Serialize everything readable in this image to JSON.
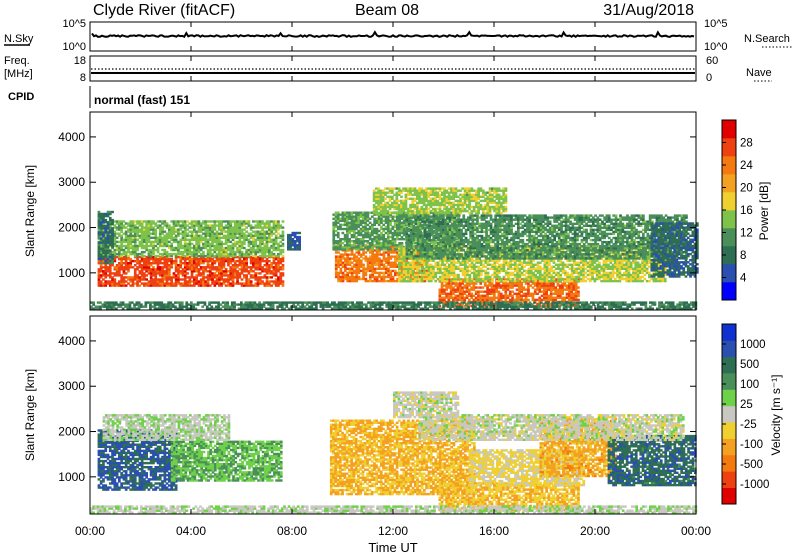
{
  "header": {
    "station": "Clyde River (fitACF)",
    "beam": "Beam 08",
    "date": "31/Aug/2018"
  },
  "panel_nsky": {
    "left_label": "N.Sky",
    "left_ticks": [
      "10^5",
      "10^0"
    ],
    "right_label": "N.Search",
    "right_ticks": [
      "10^5",
      "10^0"
    ]
  },
  "panel_freq": {
    "left_label_1": "Freq.",
    "left_label_2": "[MHz]",
    "left_ticks": [
      "18",
      "8"
    ],
    "right_label": "Nave",
    "right_ticks": [
      "60",
      "0"
    ]
  },
  "cpid": {
    "label": "CPID",
    "mode": "normal (fast) 151"
  },
  "time_axis": {
    "label": "Time UT",
    "ticks": [
      "00:00",
      "04:00",
      "08:00",
      "12:00",
      "16:00",
      "20:00",
      "00:00"
    ]
  },
  "colors": {
    "power": [
      "#0000ff",
      "#2a4fb0",
      "#2e6e52",
      "#4a8f5a",
      "#7ec24a",
      "#f0d030",
      "#f4a020",
      "#f47a10",
      "#ee4010",
      "#e00000"
    ],
    "velocity": [
      "#e00000",
      "#ee4010",
      "#f47a10",
      "#f4a020",
      "#f0d030",
      "#c8c8c0",
      "#6fd14a",
      "#4a8f5a",
      "#2e6e52",
      "#2a4fb0",
      "#1030d0"
    ]
  },
  "chart_data": [
    {
      "type": "heatmap",
      "title": "",
      "xlabel": "",
      "ylabel": "Slant Range [km]",
      "xlim": [
        0,
        24
      ],
      "ylim": [
        180,
        4550
      ],
      "yticks": [
        "1000",
        "2000",
        "3000",
        "4000"
      ],
      "colorbar": {
        "label": "Power [dB]",
        "ticks": [
          "4",
          "8",
          "12",
          "16",
          "20",
          "24",
          "28"
        ],
        "range": [
          0,
          32
        ]
      },
      "regions": [
        {
          "t0": 0.3,
          "t1": 7.6,
          "r0": 700,
          "r1": 1350,
          "value": 27
        },
        {
          "t0": 0.3,
          "t1": 7.6,
          "r0": 1350,
          "r1": 2150,
          "value": 14
        },
        {
          "t0": 0.3,
          "t1": 0.9,
          "r0": 1200,
          "r1": 2350,
          "value": 8
        },
        {
          "t0": 7.8,
          "t1": 8.3,
          "r0": 1500,
          "r1": 1900,
          "value": 6
        },
        {
          "t0": 9.7,
          "t1": 13.3,
          "r0": 800,
          "r1": 1600,
          "value": 24
        },
        {
          "t0": 9.6,
          "t1": 14.6,
          "r0": 1500,
          "r1": 2350,
          "value": 12
        },
        {
          "t0": 11.2,
          "t1": 16.5,
          "r0": 2300,
          "r1": 2850,
          "value": 15
        },
        {
          "t0": 13.8,
          "t1": 19.3,
          "r0": 250,
          "r1": 850,
          "value": 25
        },
        {
          "t0": 12.2,
          "t1": 22.8,
          "r0": 800,
          "r1": 1600,
          "value": 16
        },
        {
          "t0": 12.5,
          "t1": 23.6,
          "r0": 1300,
          "r1": 2250,
          "value": 11
        },
        {
          "t0": 22.2,
          "t1": 24.0,
          "r0": 900,
          "r1": 2100,
          "value": 7
        },
        {
          "t0": 0.0,
          "t1": 24.0,
          "r0": 190,
          "r1": 330,
          "value": 9
        }
      ]
    },
    {
      "type": "heatmap",
      "title": "",
      "xlabel": "Time UT",
      "ylabel": "Slant Range [km]",
      "xlim": [
        0,
        24
      ],
      "ylim": [
        180,
        4550
      ],
      "yticks": [
        "1000",
        "2000",
        "3000",
        "4000"
      ],
      "colorbar": {
        "label": "Velocity [m s⁻¹]",
        "ticks": [
          "1000",
          "500",
          "100",
          "25",
          "-25",
          "-100",
          "-500",
          "-1000"
        ],
        "range": [
          -1200,
          1200
        ]
      },
      "regions": [
        {
          "t0": 0.3,
          "t1": 3.4,
          "r0": 700,
          "r1": 2050,
          "value": 800
        },
        {
          "t0": 3.2,
          "t1": 7.6,
          "r0": 900,
          "r1": 1800,
          "value": 300
        },
        {
          "t0": 0.5,
          "t1": 5.5,
          "r0": 1800,
          "r1": 2350,
          "value": 60
        },
        {
          "t0": 9.5,
          "t1": 15.2,
          "r0": 600,
          "r1": 2250,
          "value": -350
        },
        {
          "t0": 12.0,
          "t1": 14.6,
          "r0": 2300,
          "r1": 2850,
          "value": 0
        },
        {
          "t0": 13.8,
          "t1": 19.3,
          "r0": 250,
          "r1": 850,
          "value": -300
        },
        {
          "t0": 15.0,
          "t1": 19.5,
          "r0": 800,
          "r1": 1600,
          "value": -150
        },
        {
          "t0": 17.8,
          "t1": 20.8,
          "r0": 1000,
          "r1": 2300,
          "value": -400
        },
        {
          "t0": 20.5,
          "t1": 24.0,
          "r0": 800,
          "r1": 1900,
          "value": 700
        },
        {
          "t0": 13.0,
          "t1": 23.5,
          "r0": 1800,
          "r1": 2350,
          "value": 0
        },
        {
          "t0": 0.0,
          "t1": 24.0,
          "r0": 190,
          "r1": 330,
          "value": 60
        }
      ]
    }
  ]
}
